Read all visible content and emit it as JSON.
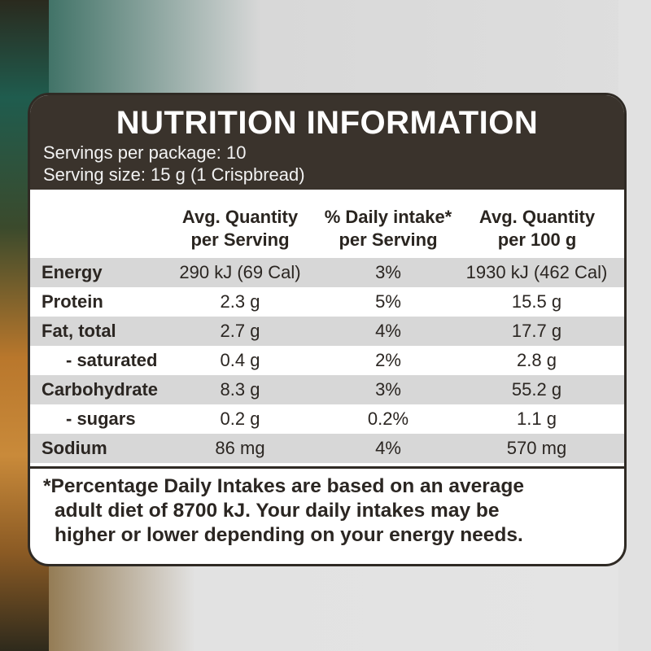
{
  "panel": {
    "title": "NUTRITION INFORMATION",
    "servings_per_package": "Servings per package: 10",
    "serving_size": "Serving size: 15 g (1 Crispbread)"
  },
  "table": {
    "headers": [
      {
        "line1": "Avg. Quantity",
        "line2": "per Serving"
      },
      {
        "line1": "% Daily intake*",
        "line2": "per Serving"
      },
      {
        "line1": "Avg. Quantity",
        "line2": "per 100 g"
      }
    ],
    "rows": [
      {
        "name": "Energy",
        "per_serving": "290 kJ (69 Cal)",
        "daily_intake": "3%",
        "per_100g": "1930 kJ (462 Cal)"
      },
      {
        "name": "Protein",
        "per_serving": "2.3 g",
        "daily_intake": "5%",
        "per_100g": "15.5 g"
      },
      {
        "name": "Fat, total",
        "per_serving": "2.7 g",
        "daily_intake": "4%",
        "per_100g": "17.7 g"
      },
      {
        "name": "- saturated",
        "per_serving": "0.4 g",
        "daily_intake": "2%",
        "per_100g": "2.8 g"
      },
      {
        "name": "Carbohydrate",
        "per_serving": "8.3 g",
        "daily_intake": "3%",
        "per_100g": "55.2 g"
      },
      {
        "name": "- sugars",
        "per_serving": "0.2 g",
        "daily_intake": "0.2%",
        "per_100g": "1.1 g"
      },
      {
        "name": "Sodium",
        "per_serving": "86 mg",
        "daily_intake": "4%",
        "per_100g": "570 mg"
      }
    ]
  },
  "footnote": {
    "line1": "*Percentage Daily Intakes are based on an average",
    "line2": "adult diet of 8700 kJ. Your daily intakes may be",
    "line3": "higher or lower depending on your energy needs."
  },
  "colors": {
    "header_bg": "#3a332c",
    "row_shade": "#d7d7d7",
    "text": "#2b2622"
  }
}
